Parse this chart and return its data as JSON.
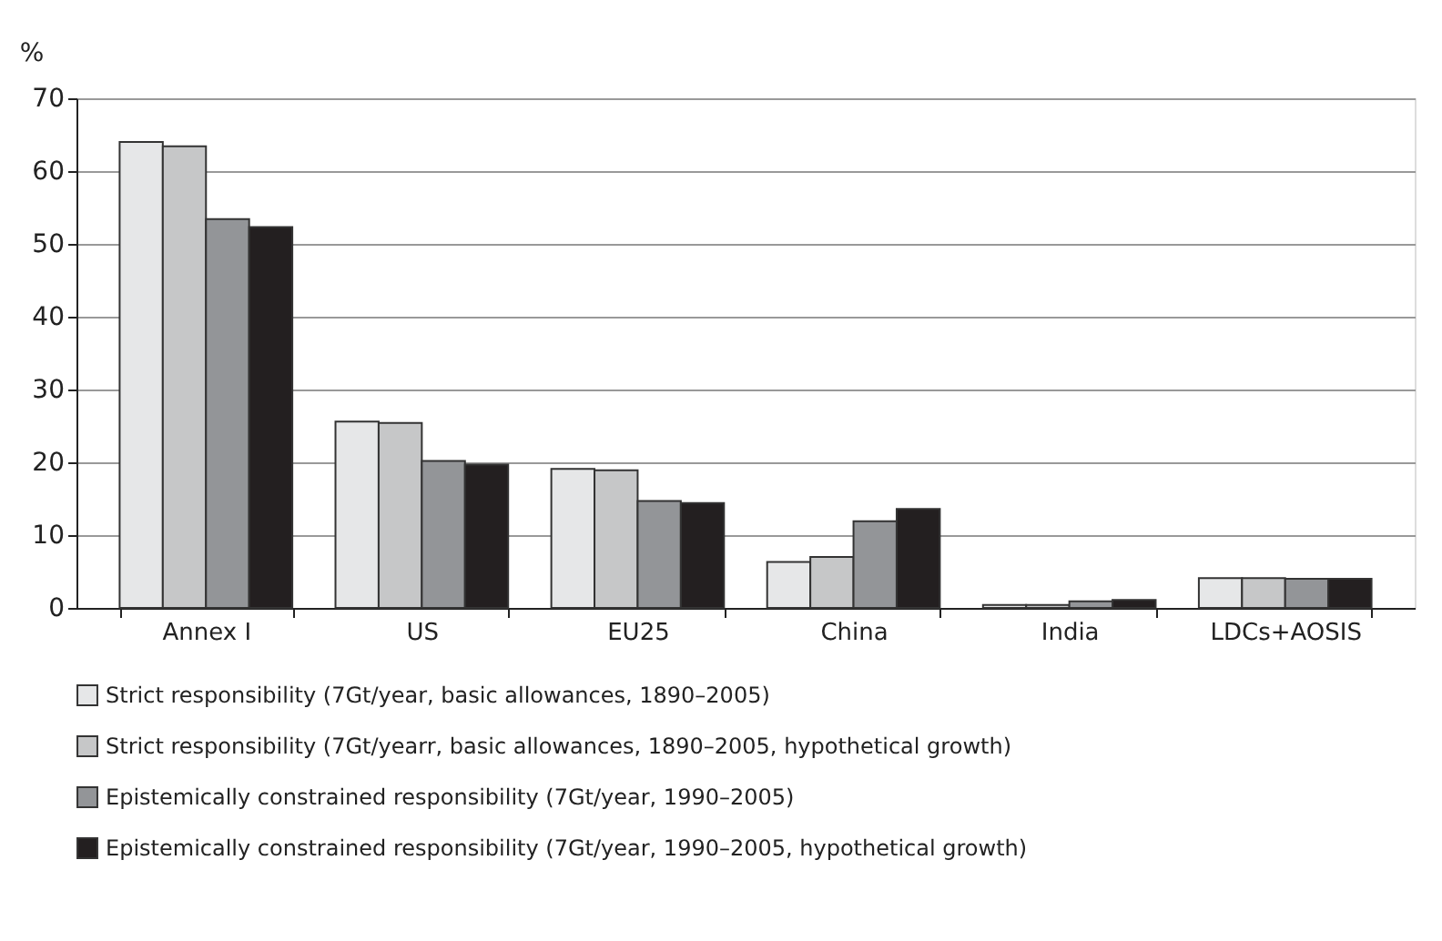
{
  "chart_data": {
    "type": "bar",
    "ylabel": "%",
    "categories": [
      "Annex I",
      "US",
      "EU25",
      "China",
      "India",
      "LDCs+AOSIS"
    ],
    "series": [
      {
        "name": "Strict responsibility (7Gt/year, basic allowances, 1890–2005)",
        "color": "#e6e7e8",
        "values": [
          64,
          25.6,
          19.1,
          6.3,
          0.4,
          4.1
        ]
      },
      {
        "name": "Strict responsibility (7Gt/yearr, basic allowances, 1890–2005, hypothetical growth)",
        "color": "#c6c7c8",
        "values": [
          63.4,
          25.4,
          18.9,
          7.0,
          0.4,
          4.1
        ]
      },
      {
        "name": "Epistemically constrained responsibility (7Gt/year, 1990–2005)",
        "color": "#939598",
        "values": [
          53.4,
          20.2,
          14.7,
          11.9,
          0.9,
          4.0
        ]
      },
      {
        "name": "Epistemically constrained responsibility (7Gt/year, 1990–2005, hypothetical growth)",
        "color": "#231f20",
        "values": [
          52.3,
          19.7,
          14.4,
          13.6,
          1.1,
          4.0
        ]
      }
    ],
    "ylim": [
      0,
      70
    ],
    "yticks": [
      0,
      10,
      20,
      30,
      40,
      50,
      60,
      70
    ],
    "grid": "y",
    "legend": "bottom left"
  }
}
